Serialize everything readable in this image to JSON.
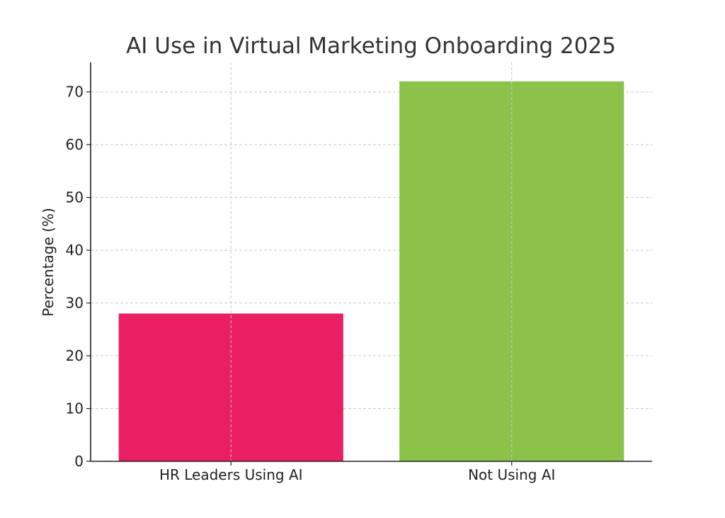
{
  "chart_data": {
    "type": "bar",
    "title": "AI Use in Virtual Marketing Onboarding 2025",
    "xlabel": "",
    "ylabel": "Percentage (%)",
    "categories": [
      "HR Leaders Using AI",
      "Not Using AI"
    ],
    "values": [
      28,
      72
    ],
    "colors": [
      "#E91E63",
      "#8BC34A"
    ],
    "ylim": [
      0,
      75.6
    ],
    "yticks": [
      0,
      10,
      20,
      30,
      40,
      50,
      60,
      70
    ],
    "grid": true,
    "legend": "none"
  }
}
